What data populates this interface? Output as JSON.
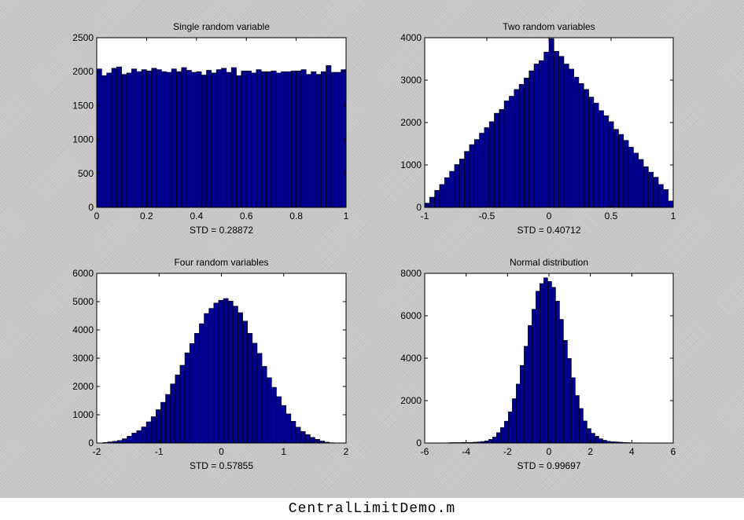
{
  "caption": "CentralLimitDemo.m",
  "colors": {
    "bar_fill": "#00008f",
    "bar_edge": "#000000",
    "figure_bg": "#c8c8c8",
    "axes_bg": "#ffffff"
  },
  "chart_data": [
    {
      "type": "bar",
      "title": "Single random variable",
      "xlabel": "STD = 0.28872",
      "xlim": [
        0,
        1
      ],
      "ylim": [
        0,
        2500
      ],
      "xticks": [
        0,
        0.2,
        0.4,
        0.6,
        0.8,
        1
      ],
      "xtick_labels": [
        "0",
        "0.2",
        "0.4",
        "0.6",
        "0.8",
        "1"
      ],
      "yticks": [
        0,
        500,
        1000,
        1500,
        2000,
        2500
      ],
      "ytick_labels": [
        "0",
        "500",
        "1000",
        "1500",
        "2000",
        "2500"
      ],
      "bin_start": 0,
      "bin_width": 0.02,
      "values": [
        2040,
        1940,
        1980,
        2050,
        2070,
        1960,
        1980,
        2040,
        2000,
        2030,
        2010,
        2050,
        2030,
        2000,
        1990,
        2040,
        2000,
        2060,
        2020,
        1990,
        2000,
        1950,
        2020,
        1980,
        2030,
        2050,
        1990,
        2060,
        1940,
        2010,
        2010,
        1980,
        2030,
        2000,
        2000,
        2010,
        1980,
        2000,
        2000,
        2010,
        2010,
        2030,
        1960,
        2000,
        1960,
        2000,
        2090,
        1990,
        1990,
        2030
      ]
    },
    {
      "type": "bar",
      "title": "Two random variables",
      "xlabel": "STD = 0.40712",
      "xlim": [
        -1,
        1
      ],
      "ylim": [
        0,
        4000
      ],
      "xticks": [
        -1,
        -0.5,
        0,
        0.5,
        1
      ],
      "xtick_labels": [
        "-1",
        "-0.5",
        "0",
        "0.5",
        "1"
      ],
      "yticks": [
        0,
        1000,
        2000,
        3000,
        4000
      ],
      "ytick_labels": [
        "0",
        "1000",
        "2000",
        "3000",
        "4000"
      ],
      "bin_start": -1,
      "bin_width": 0.04,
      "values": [
        100,
        240,
        400,
        540,
        700,
        850,
        1010,
        1140,
        1320,
        1480,
        1600,
        1750,
        1880,
        2020,
        2220,
        2310,
        2510,
        2620,
        2780,
        2900,
        3050,
        3220,
        3380,
        3460,
        3660,
        3980,
        3680,
        3560,
        3380,
        3260,
        3070,
        2920,
        2780,
        2600,
        2460,
        2280,
        2160,
        2020,
        1840,
        1720,
        1580,
        1420,
        1280,
        1130,
        960,
        830,
        710,
        540,
        420,
        150
      ]
    },
    {
      "type": "bar",
      "title": "Four random variables",
      "xlabel": "STD = 0.57855",
      "xlim": [
        -2,
        2
      ],
      "ylim": [
        0,
        6000
      ],
      "xticks": [
        -2,
        -1,
        0,
        1,
        2
      ],
      "xtick_labels": [
        "-2",
        "-1",
        "0",
        "1",
        "2"
      ],
      "yticks": [
        0,
        1000,
        2000,
        3000,
        4000,
        5000,
        6000
      ],
      "ytick_labels": [
        "0",
        "1000",
        "2000",
        "3000",
        "4000",
        "5000",
        "6000"
      ],
      "bin_start": -1.9,
      "bin_width": 0.0773,
      "values": [
        20,
        40,
        60,
        90,
        150,
        240,
        350,
        440,
        570,
        750,
        930,
        1180,
        1440,
        1720,
        2090,
        2410,
        2750,
        3190,
        3520,
        3880,
        4220,
        4580,
        4760,
        4950,
        5050,
        5110,
        5020,
        4840,
        4610,
        4310,
        3880,
        3530,
        3170,
        2710,
        2310,
        1970,
        1640,
        1330,
        1030,
        770,
        560,
        410,
        300,
        200,
        130,
        70,
        30,
        10
      ]
    },
    {
      "type": "bar",
      "title": "Normal distribution",
      "xlabel": "STD = 0.99697",
      "xlim": [
        -6,
        6
      ],
      "ylim": [
        0,
        8000
      ],
      "xticks": [
        -6,
        -4,
        -2,
        0,
        2,
        4,
        6
      ],
      "xtick_labels": [
        "-6",
        "-4",
        "-2",
        "0",
        "2",
        "4",
        "6"
      ],
      "yticks": [
        0,
        2000,
        4000,
        6000,
        8000
      ],
      "ytick_labels": [
        "0",
        "2000",
        "4000",
        "6000",
        "8000"
      ],
      "bin_start": -5,
      "bin_width": 0.19,
      "values": [
        10,
        20,
        20,
        20,
        30,
        30,
        30,
        40,
        50,
        70,
        100,
        170,
        280,
        490,
        730,
        1030,
        1470,
        2090,
        2780,
        3660,
        4560,
        5540,
        6310,
        7160,
        7520,
        7790,
        7620,
        7340,
        6690,
        5830,
        4840,
        3990,
        3080,
        2240,
        1630,
        1040,
        680,
        460,
        320,
        200,
        130,
        80,
        60,
        50,
        40,
        30,
        20,
        10,
        10,
        10
      ]
    }
  ]
}
